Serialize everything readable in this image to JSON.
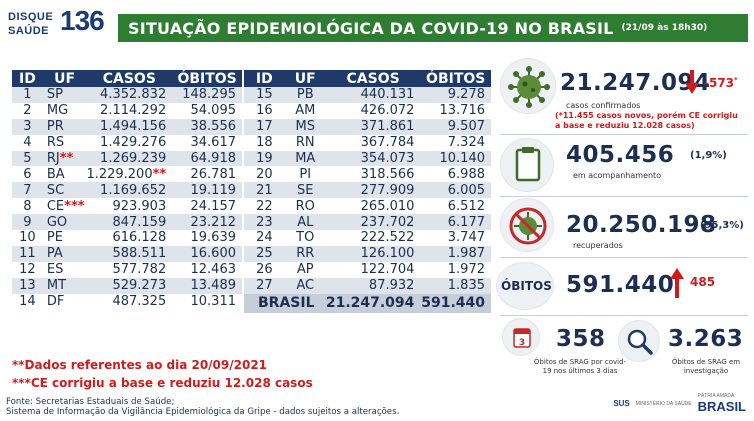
{
  "header": {
    "logo_word1": "DISQUE",
    "logo_word2": "SAÚDE",
    "logo_number": "136",
    "title": "SITUAÇÃO EPIDEMIOLÓGICA DA COVID-19 NO BRASIL",
    "date": "(21/09 às 18h30)"
  },
  "table": {
    "columns": [
      "ID",
      "UF",
      "CASOS",
      "ÓBITOS"
    ],
    "left_rows": [
      {
        "id": "1",
        "uf": "SP",
        "uf_mark": "",
        "casos": "4.352.832",
        "casos_mark": "",
        "obitos": "148.295"
      },
      {
        "id": "2",
        "uf": "MG",
        "uf_mark": "",
        "casos": "2.114.292",
        "casos_mark": "",
        "obitos": "54.095"
      },
      {
        "id": "3",
        "uf": "PR",
        "uf_mark": "",
        "casos": "1.494.156",
        "casos_mark": "",
        "obitos": "38.556"
      },
      {
        "id": "4",
        "uf": "RS",
        "uf_mark": "",
        "casos": "1.429.276",
        "casos_mark": "",
        "obitos": "34.617"
      },
      {
        "id": "5",
        "uf": "RJ",
        "uf_mark": "**",
        "casos": "1.269.239",
        "casos_mark": "",
        "obitos": "64.918"
      },
      {
        "id": "6",
        "uf": "BA",
        "uf_mark": "",
        "casos": "1.229.200",
        "casos_mark": "**",
        "obitos": "26.781"
      },
      {
        "id": "7",
        "uf": "SC",
        "uf_mark": "",
        "casos": "1.169.652",
        "casos_mark": "",
        "obitos": "19.119"
      },
      {
        "id": "8",
        "uf": "CE",
        "uf_mark": "***",
        "casos": "923.903",
        "casos_mark": "",
        "obitos": "24.157"
      },
      {
        "id": "9",
        "uf": "GO",
        "uf_mark": "",
        "casos": "847.159",
        "casos_mark": "",
        "obitos": "23.212"
      },
      {
        "id": "10",
        "uf": "PE",
        "uf_mark": "",
        "casos": "616.128",
        "casos_mark": "",
        "obitos": "19.639"
      },
      {
        "id": "11",
        "uf": "PA",
        "uf_mark": "",
        "casos": "588.511",
        "casos_mark": "",
        "obitos": "16.600"
      },
      {
        "id": "12",
        "uf": "ES",
        "uf_mark": "",
        "casos": "577.782",
        "casos_mark": "",
        "obitos": "12.463"
      },
      {
        "id": "13",
        "uf": "MT",
        "uf_mark": "",
        "casos": "529.273",
        "casos_mark": "",
        "obitos": "13.489"
      },
      {
        "id": "14",
        "uf": "DF",
        "uf_mark": "",
        "casos": "487.325",
        "casos_mark": "",
        "obitos": "10.311"
      }
    ],
    "right_rows": [
      {
        "id": "15",
        "uf": "PB",
        "casos": "440.131",
        "obitos": "9.278"
      },
      {
        "id": "16",
        "uf": "AM",
        "casos": "426.072",
        "obitos": "13.716"
      },
      {
        "id": "17",
        "uf": "MS",
        "casos": "371.861",
        "obitos": "9.507"
      },
      {
        "id": "18",
        "uf": "RN",
        "casos": "367.784",
        "obitos": "7.324"
      },
      {
        "id": "19",
        "uf": "MA",
        "casos": "354.073",
        "obitos": "10.140"
      },
      {
        "id": "20",
        "uf": "PI",
        "casos": "318.566",
        "obitos": "6.988"
      },
      {
        "id": "21",
        "uf": "SE",
        "casos": "277.909",
        "obitos": "6.005"
      },
      {
        "id": "22",
        "uf": "RO",
        "casos": "265.010",
        "obitos": "6.512"
      },
      {
        "id": "23",
        "uf": "AL",
        "casos": "237.702",
        "obitos": "6.177"
      },
      {
        "id": "24",
        "uf": "TO",
        "casos": "222.522",
        "obitos": "3.747"
      },
      {
        "id": "25",
        "uf": "RR",
        "casos": "126.100",
        "obitos": "1.987"
      },
      {
        "id": "26",
        "uf": "AP",
        "casos": "122.704",
        "obitos": "1.972"
      },
      {
        "id": "27",
        "uf": "AC",
        "casos": "87.932",
        "obitos": "1.835"
      }
    ],
    "total": {
      "label": "BRASIL",
      "casos": "21.247.094",
      "obitos": "591.440"
    }
  },
  "notes": {
    "note1": "**Dados referentes ao dia 20/09/2021",
    "note2": "***CE corrigiu a base e reduziu 12.028 casos"
  },
  "source": {
    "line1": "Fonte: Secretarias Estaduais de Saúde;",
    "line2": "Sistema de Informação da Vigilância Epidemiológica da Gripe - dados sujeitos a alterações."
  },
  "summary": {
    "confirmed": {
      "value": "21.247.094",
      "delta": "-573",
      "delta_mark": "*",
      "label": "casos confirmados",
      "note": "(*11.455 casos novos, porém CE corrigiu a base e reduziu 12.028 casos)",
      "arrow": "down",
      "icon": "virus-icon"
    },
    "monitoring": {
      "value": "405.456",
      "pct": "(1,9%)",
      "label": "em acompanhamento",
      "icon": "clipboard-icon"
    },
    "recovered": {
      "value": "20.250.198",
      "pct": "(95,3%)",
      "label": "recuperados",
      "icon": "crossed-virus-icon"
    },
    "deaths": {
      "title": "ÓBITOS",
      "value": "591.440",
      "delta": "485",
      "arrow": "up"
    },
    "srag_recent": {
      "value": "358",
      "label": "Óbitos de SRAG por covid-19 nos últimos 3 dias",
      "icon": "calendar-icon",
      "calendar_number": "3"
    },
    "srag_investigation": {
      "value": "3.263",
      "label": "Óbitos de SRAG em investigação",
      "icon": "magnifier-icon"
    }
  },
  "footer_logos": {
    "sus": "SUS",
    "ministry": "MINISTÉRIO DA SAÚDE",
    "brasil": "BRASIL",
    "slogan": "PÁTRIA AMADA"
  },
  "colors": {
    "accent_green": "#2e7d32",
    "table_header": "#1f3a68",
    "alert_red": "#d01c1c"
  }
}
